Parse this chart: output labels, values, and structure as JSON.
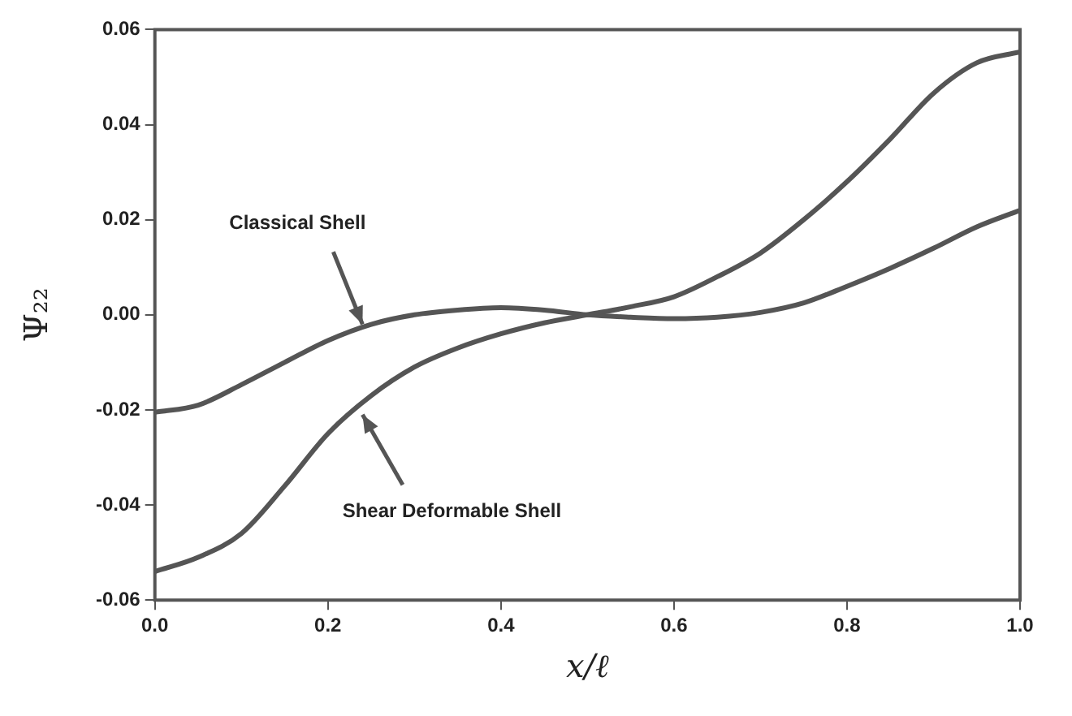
{
  "chart_data": {
    "type": "line",
    "xlabel": "x/ℓ",
    "ylabel": "Ψ₂₂",
    "xlim": [
      0,
      1
    ],
    "xticks": [
      {
        "value": 0,
        "label": "0.0"
      },
      {
        "value": 0.2,
        "label": "0.2"
      },
      {
        "value": 0.4,
        "label": "0.4"
      },
      {
        "value": 0.6,
        "label": "0.6"
      },
      {
        "value": 0.8,
        "label": "0.8"
      },
      {
        "value": 1,
        "label": "1.0"
      }
    ],
    "ylim": [
      -0.06,
      0.06
    ],
    "yticks": [
      {
        "value": -0.06,
        "label": "-0.06"
      },
      {
        "value": -0.04,
        "label": "-0.04"
      },
      {
        "value": -0.02,
        "label": "-0.02"
      },
      {
        "value": 0,
        "label": "0.00"
      },
      {
        "value": 0.02,
        "label": "0.02"
      },
      {
        "value": 0.04,
        "label": "0.04"
      },
      {
        "value": 0.06,
        "label": "0.06"
      }
    ],
    "grid": false,
    "legend": false,
    "marker": "none",
    "line_style": "solid",
    "series": [
      {
        "color": "#555555",
        "x": [
          0,
          0.05,
          0.1,
          0.15,
          0.2,
          0.25,
          0.3,
          0.35,
          0.4,
          0.45,
          0.5,
          0.55,
          0.6,
          0.65,
          0.7,
          0.75,
          0.8,
          0.85,
          0.9,
          0.95,
          1
        ],
        "values": [
          -0.0205,
          -0.019,
          -0.0147,
          -0.01,
          -0.0054,
          -0.002,
          0,
          0.001,
          0.0015,
          0.001,
          0,
          -0.0005,
          -0.0008,
          -0.0005,
          0.0005,
          0.0025,
          0.006,
          0.0098,
          0.014,
          0.0185,
          0.022
        ]
      },
      {
        "color": "#555555",
        "x": [
          0,
          0.05,
          0.1,
          0.15,
          0.2,
          0.25,
          0.3,
          0.35,
          0.4,
          0.45,
          0.5,
          0.55,
          0.6,
          0.65,
          0.7,
          0.75,
          0.8,
          0.85,
          0.9,
          0.95,
          1
        ],
        "values": [
          -0.054,
          -0.051,
          -0.046,
          -0.036,
          -0.025,
          -0.017,
          -0.011,
          -0.007,
          -0.004,
          -0.0017,
          0,
          0.0017,
          0.0038,
          0.008,
          0.013,
          0.02,
          0.028,
          0.037,
          0.0466,
          0.053,
          0.0553
        ]
      }
    ],
    "annotations": [
      {
        "text": "Classical Shell",
        "x": 0.24,
        "y": -0.002
      },
      {
        "text": "Shear Deformable Shell",
        "x": 0.24,
        "y": -0.021
      }
    ]
  }
}
